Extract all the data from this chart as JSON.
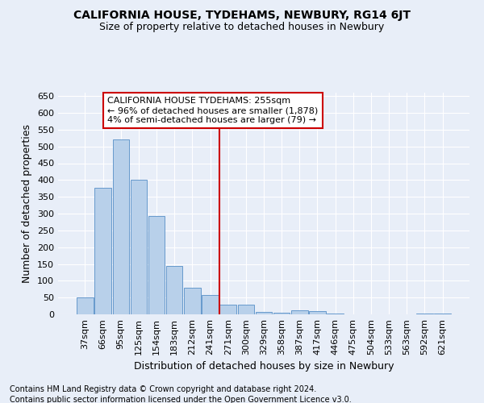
{
  "title": "CALIFORNIA HOUSE, TYDEHAMS, NEWBURY, RG14 6JT",
  "subtitle": "Size of property relative to detached houses in Newbury",
  "xlabel": "Distribution of detached houses by size in Newbury",
  "ylabel": "Number of detached properties",
  "bar_labels": [
    "37sqm",
    "66sqm",
    "95sqm",
    "125sqm",
    "154sqm",
    "183sqm",
    "212sqm",
    "241sqm",
    "271sqm",
    "300sqm",
    "329sqm",
    "358sqm",
    "387sqm",
    "417sqm",
    "446sqm",
    "475sqm",
    "504sqm",
    "533sqm",
    "563sqm",
    "592sqm",
    "621sqm"
  ],
  "bar_values": [
    50,
    378,
    520,
    402,
    293,
    143,
    80,
    57,
    28,
    28,
    8,
    5,
    12,
    10,
    3,
    0,
    0,
    0,
    0,
    3,
    2
  ],
  "bar_color": "#b8d0ea",
  "bar_edge_color": "#6699cc",
  "vline_x_index": 8,
  "vline_color": "#cc0000",
  "annotation_text": "CALIFORNIA HOUSE TYDEHAMS: 255sqm\n← 96% of detached houses are smaller (1,878)\n4% of semi-detached houses are larger (79) →",
  "annotation_box_color": "#ffffff",
  "annotation_box_edge": "#cc0000",
  "ylim": [
    0,
    660
  ],
  "yticks": [
    0,
    50,
    100,
    150,
    200,
    250,
    300,
    350,
    400,
    450,
    500,
    550,
    600,
    650
  ],
  "background_color": "#e8eef8",
  "grid_color": "#ffffff",
  "footer_line1": "Contains HM Land Registry data © Crown copyright and database right 2024.",
  "footer_line2": "Contains public sector information licensed under the Open Government Licence v3.0.",
  "title_fontsize": 10,
  "subtitle_fontsize": 9,
  "axis_label_fontsize": 9,
  "tick_fontsize": 8,
  "annotation_fontsize": 8,
  "footer_fontsize": 7
}
